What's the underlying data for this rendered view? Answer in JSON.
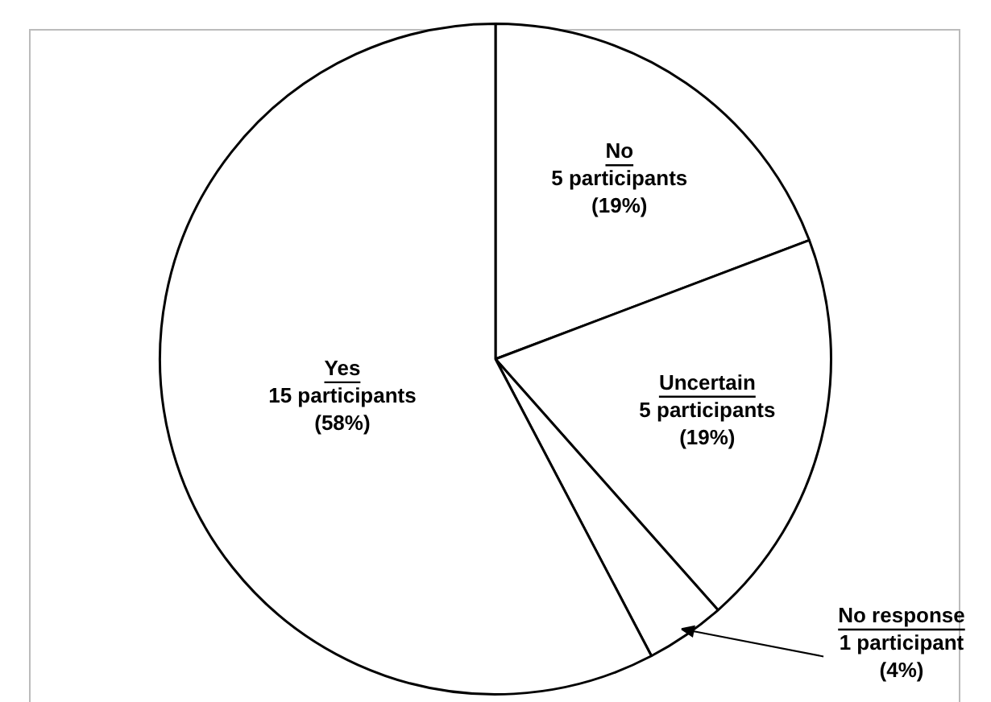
{
  "chart_data": {
    "type": "pie",
    "categories": [
      "No",
      "Uncertain",
      "No response",
      "Yes"
    ],
    "values": [
      5,
      5,
      1,
      15
    ],
    "colors": [
      "#ffffff",
      "#ffffff",
      "#ffffff",
      "#ffffff"
    ],
    "value_labels": [
      "5 participants\n(19%)",
      "5 participants\n(19%)",
      "1 participant\n(4%)",
      "15 participants\n(58%)"
    ],
    "legend": false
  }
}
